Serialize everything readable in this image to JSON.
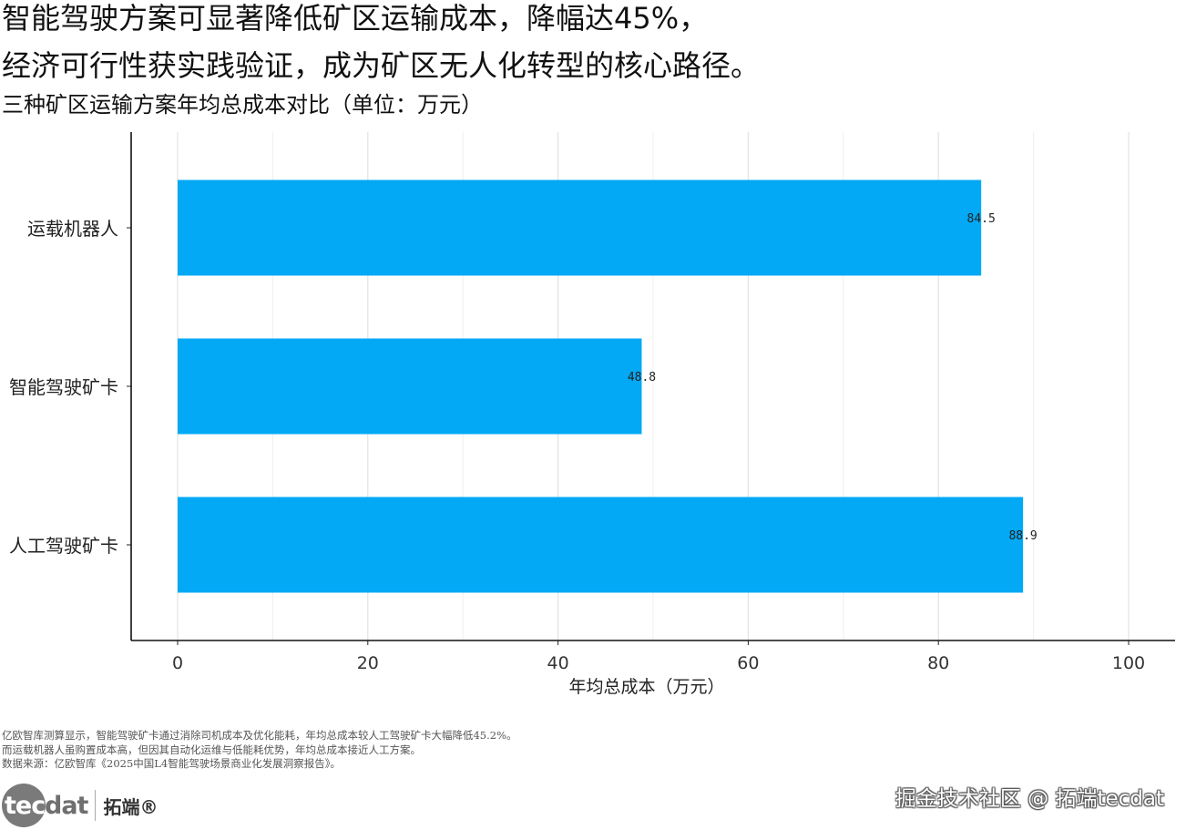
{
  "title_line1": "智能驾驶方案可显著降低矿区运输成本，降幅达45%，",
  "title_line2": "经济可行性获实践验证，成为矿区无人化转型的核心路径。",
  "chart_data": {
    "type": "bar",
    "orientation": "horizontal",
    "title": "三种矿区运输方案年均总成本对比（单位：万元）",
    "categories": [
      "运载机器人",
      "智能驾驶矿卡",
      "人工驾驶矿卡"
    ],
    "values": [
      84.5,
      48.8,
      88.9
    ],
    "value_labels": [
      "84.5",
      "48.8",
      "88.9"
    ],
    "xlabel": "年均总成本（万元）",
    "ylabel": "",
    "xlim": [
      0,
      100
    ],
    "xticks": [
      "0",
      "20",
      "40",
      "60",
      "80",
      "100"
    ],
    "grid": "vertical",
    "bar_color": "#03A9F4"
  },
  "notes": [
    "亿欧智库测算显示，智能驾驶矿卡通过消除司机成本及优化能耗，年均总成本较人工驾驶矿卡大幅降低45.2%。",
    "而运载机器人虽购置成本高，但因其自动化运维与低能耗优势，年均总成本接近人工方案。",
    "数据来源：亿欧智库《2025中国L4智能驾驶场景商业化发展洞察报告》。"
  ],
  "logo": {
    "circle_text": "tec",
    "rest_text": "dat",
    "cn_text": "拓端®"
  },
  "watermark": "掘金技术社区 @ 拓端tecdat"
}
